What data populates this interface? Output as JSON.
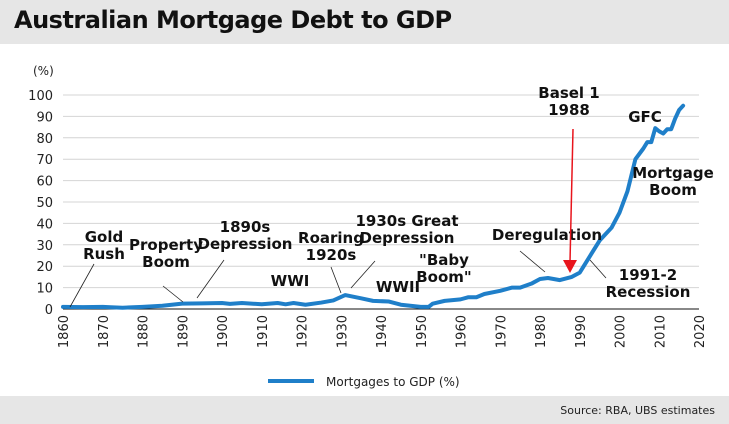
{
  "header": {
    "title": "Australian Mortgage Debt to GDP"
  },
  "footer": {
    "source": "Source:  RBA, UBS estimates"
  },
  "chart_data": {
    "type": "line",
    "title": "Australian Mortgage Debt to GDP",
    "ylabel": "(%)",
    "xlim": [
      1860,
      2020
    ],
    "ylim": [
      0,
      100
    ],
    "xticks": [
      1860,
      1870,
      1880,
      1890,
      1900,
      1910,
      1920,
      1930,
      1940,
      1950,
      1960,
      1970,
      1980,
      1990,
      2000,
      2010,
      2020
    ],
    "yticks": [
      0,
      10,
      20,
      30,
      40,
      50,
      60,
      70,
      80,
      90,
      100
    ],
    "grid": true,
    "legend": "bottom",
    "color": "#1f7fc9",
    "arrow_color": "#e8141c",
    "series": [
      {
        "name": "Mortgages to GDP (%)",
        "x": [
          1860,
          1865,
          1870,
          1872,
          1875,
          1880,
          1885,
          1890,
          1895,
          1900,
          1902,
          1905,
          1910,
          1914,
          1916,
          1918,
          1921,
          1925,
          1928,
          1931,
          1935,
          1938,
          1942,
          1945,
          1950,
          1952,
          1953,
          1956,
          1960,
          1962,
          1964,
          1966,
          1970,
          1973,
          1975,
          1978,
          1980,
          1982,
          1985,
          1988,
          1990,
          1991,
          1993,
          1995,
          1998,
          2000,
          2002,
          2004,
          2006,
          2007,
          2008,
          2009,
          2010,
          2011,
          2012,
          2013,
          2014,
          2015,
          2016
        ],
        "y": [
          1,
          0.9,
          1,
          0.8,
          0.6,
          1,
          1.5,
          2.5,
          2.6,
          2.8,
          2.4,
          2.8,
          2.2,
          2.8,
          2.2,
          2.8,
          2,
          3,
          4,
          6.5,
          5,
          3.8,
          3.5,
          2,
          1,
          1,
          2.5,
          3.8,
          4.5,
          5.5,
          5.5,
          7,
          8.5,
          10,
          10,
          12,
          14,
          14.5,
          13.5,
          15,
          17,
          20,
          26,
          32,
          38,
          45,
          55,
          70,
          75,
          78,
          78,
          84.5,
          83,
          82,
          84,
          84,
          89,
          93,
          95
        ]
      }
    ],
    "annotations": [
      {
        "text": [
          "Gold",
          "Rush"
        ],
        "point": [
          1861,
          1
        ]
      },
      {
        "text": [
          "Property",
          "Boom"
        ],
        "point": [
          1890,
          2.5
        ]
      },
      {
        "text": [
          "1890s",
          "Depression"
        ],
        "point": [
          1894,
          2.6
        ]
      },
      {
        "text": [
          "WWI"
        ]
      },
      {
        "text": [
          "Roaring",
          "1920s"
        ],
        "point": [
          1931,
          6.5
        ]
      },
      {
        "text": [
          "1930s Great",
          "Depression"
        ],
        "point": [
          1932,
          6
        ]
      },
      {
        "text": [
          "WWII"
        ]
      },
      {
        "text": [
          "\"Baby",
          "Boom\""
        ]
      },
      {
        "text": [
          "Deregulation"
        ],
        "point": [
          1982,
          14.5
        ]
      },
      {
        "text": [
          "Basel 1",
          "1988"
        ],
        "point": [
          1988,
          15
        ]
      },
      {
        "text": [
          "1991-2",
          "Recession"
        ],
        "point": [
          1992,
          22
        ]
      },
      {
        "text": [
          "GFC"
        ]
      },
      {
        "text": [
          "Mortgage",
          "Boom"
        ]
      }
    ]
  }
}
